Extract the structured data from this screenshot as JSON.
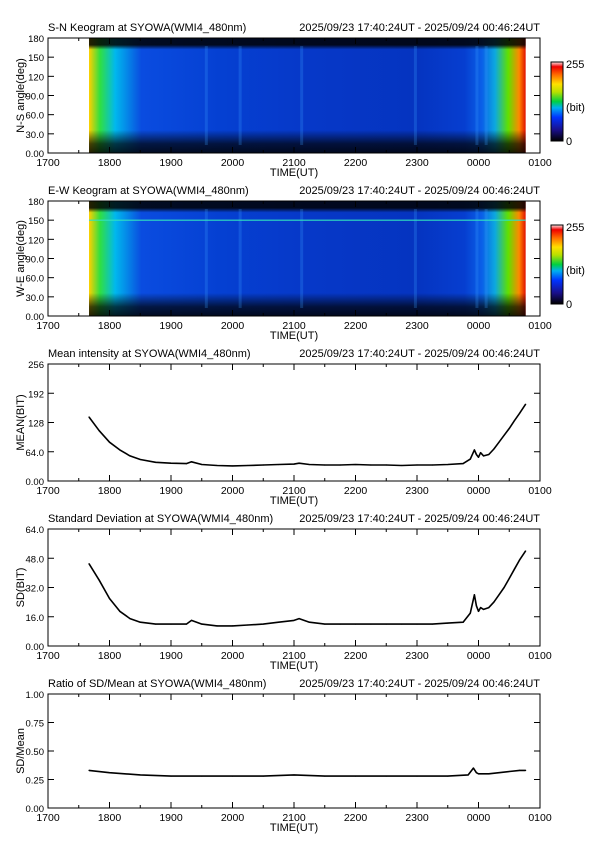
{
  "chart_data": [
    {
      "type": "heatmap",
      "title": "S-N Keogram at SYOWA(WMI4_480nm)",
      "time_range": "2025/09/23 17:40:24UT - 2025/09/24 00:46:24UT",
      "xlabel": "TIME(UT)",
      "ylabel": "N-S angle(deg)",
      "x_ticks": [
        "1700",
        "1800",
        "1900",
        "2000",
        "2100",
        "2200",
        "2300",
        "0000",
        "0100"
      ],
      "y_ticks": [
        "0.00",
        "30.0",
        "60.0",
        "90.0",
        "120",
        "150",
        "180"
      ],
      "ylim": [
        0,
        180
      ],
      "data_start": "1740",
      "data_end": "0046",
      "colorbar": {
        "max_label": "255",
        "unit_label": "(bit)",
        "min_label": "0"
      }
    },
    {
      "type": "heatmap",
      "title": "E-W Keogram at SYOWA(WMI4_480nm)",
      "time_range": "2025/09/23 17:40:24UT - 2025/09/24 00:46:24UT",
      "xlabel": "TIME(UT)",
      "ylabel": "W-E angle(deg)",
      "x_ticks": [
        "1700",
        "1800",
        "1900",
        "2000",
        "2100",
        "2200",
        "2300",
        "0000",
        "0100"
      ],
      "y_ticks": [
        "0.00",
        "30.0",
        "60.0",
        "90.0",
        "120",
        "150",
        "180"
      ],
      "ylim": [
        0,
        180
      ],
      "data_start": "1740",
      "data_end": "0046",
      "colorbar": {
        "max_label": "255",
        "unit_label": "(bit)",
        "min_label": "0"
      }
    },
    {
      "type": "line",
      "title": "Mean intensity at SYOWA(WMI4_480nm)",
      "time_range": "2025/09/23 17:40:24UT - 2025/09/24 00:46:24UT",
      "xlabel": "TIME(UT)",
      "ylabel": "MEAN(BIT)",
      "x_ticks": [
        "1700",
        "1800",
        "1900",
        "2000",
        "2100",
        "2200",
        "2300",
        "0000",
        "0100"
      ],
      "y_ticks": [
        "0.00",
        "64.0",
        "128",
        "192",
        "256"
      ],
      "ylim": [
        0,
        256
      ],
      "x": [
        "17:40",
        "17:50",
        "18:00",
        "18:10",
        "18:20",
        "18:30",
        "18:45",
        "19:00",
        "19:15",
        "19:20",
        "19:30",
        "19:45",
        "20:00",
        "20:15",
        "20:30",
        "20:45",
        "21:00",
        "21:05",
        "21:15",
        "21:30",
        "21:45",
        "22:00",
        "22:15",
        "22:30",
        "22:45",
        "23:00",
        "23:15",
        "23:30",
        "23:45",
        "23:52",
        "23:56",
        "23:58",
        "00:00",
        "00:02",
        "00:05",
        "00:10",
        "00:15",
        "00:20",
        "00:25",
        "00:30",
        "00:35",
        "00:40",
        "00:46"
      ],
      "series": [
        {
          "values": [
            140,
            110,
            85,
            68,
            55,
            47,
            41,
            39,
            38,
            42,
            36,
            34,
            33,
            34,
            35,
            36,
            37,
            39,
            36,
            35,
            35,
            36,
            35,
            35,
            34,
            35,
            35,
            36,
            38,
            48,
            68,
            58,
            52,
            62,
            55,
            58,
            70,
            85,
            100,
            115,
            132,
            148,
            168
          ]
        }
      ]
    },
    {
      "type": "line",
      "title": "Standard Deviation at SYOWA(WMI4_480nm)",
      "time_range": "2025/09/23 17:40:24UT - 2025/09/24 00:46:24UT",
      "xlabel": "TIME(UT)",
      "ylabel": "SD(BIT)",
      "x_ticks": [
        "1700",
        "1800",
        "1900",
        "2000",
        "2100",
        "2200",
        "2300",
        "0000",
        "0100"
      ],
      "y_ticks": [
        "0.00",
        "16.0",
        "32.0",
        "48.0",
        "64.0"
      ],
      "ylim": [
        0,
        64
      ],
      "x": [
        "17:40",
        "17:50",
        "18:00",
        "18:10",
        "18:20",
        "18:30",
        "18:45",
        "19:00",
        "19:15",
        "19:20",
        "19:30",
        "19:45",
        "20:00",
        "20:15",
        "20:30",
        "20:45",
        "21:00",
        "21:05",
        "21:15",
        "21:30",
        "21:45",
        "22:00",
        "22:15",
        "22:30",
        "22:45",
        "23:00",
        "23:15",
        "23:30",
        "23:45",
        "23:52",
        "23:56",
        "23:58",
        "00:00",
        "00:02",
        "00:05",
        "00:10",
        "00:15",
        "00:20",
        "00:25",
        "00:30",
        "00:35",
        "00:40",
        "00:46"
      ],
      "series": [
        {
          "values": [
            45,
            36,
            26,
            19,
            15,
            13,
            12,
            12,
            12,
            14,
            12,
            11,
            11,
            11.5,
            12,
            13,
            14,
            15,
            13,
            12,
            12,
            12,
            12,
            12,
            12,
            12,
            12,
            12.5,
            13,
            18,
            28,
            22,
            19,
            21,
            20,
            21,
            24,
            28,
            32,
            37,
            42,
            47,
            52
          ]
        }
      ]
    },
    {
      "type": "line",
      "title": "Ratio of SD/Mean at SYOWA(WMI4_480nm)",
      "time_range": "2025/09/23 17:40:24UT - 2025/09/24 00:46:24UT",
      "xlabel": "TIME(UT)",
      "ylabel": "SD/Mean",
      "x_ticks": [
        "1700",
        "1800",
        "1900",
        "2000",
        "2100",
        "2200",
        "2300",
        "0000",
        "0100"
      ],
      "y_ticks": [
        "0.00",
        "0.25",
        "0.50",
        "0.75",
        "1.00"
      ],
      "ylim": [
        0,
        1
      ],
      "x": [
        "17:40",
        "18:00",
        "18:30",
        "19:00",
        "19:30",
        "20:00",
        "20:30",
        "21:00",
        "21:30",
        "22:00",
        "22:30",
        "23:00",
        "23:30",
        "23:50",
        "23:55",
        "23:58",
        "00:00",
        "00:03",
        "00:10",
        "00:20",
        "00:30",
        "00:40",
        "00:46"
      ],
      "series": [
        {
          "values": [
            0.33,
            0.31,
            0.29,
            0.28,
            0.28,
            0.28,
            0.28,
            0.29,
            0.28,
            0.28,
            0.28,
            0.28,
            0.28,
            0.29,
            0.35,
            0.31,
            0.3,
            0.3,
            0.3,
            0.31,
            0.32,
            0.33,
            0.33
          ]
        }
      ]
    }
  ]
}
